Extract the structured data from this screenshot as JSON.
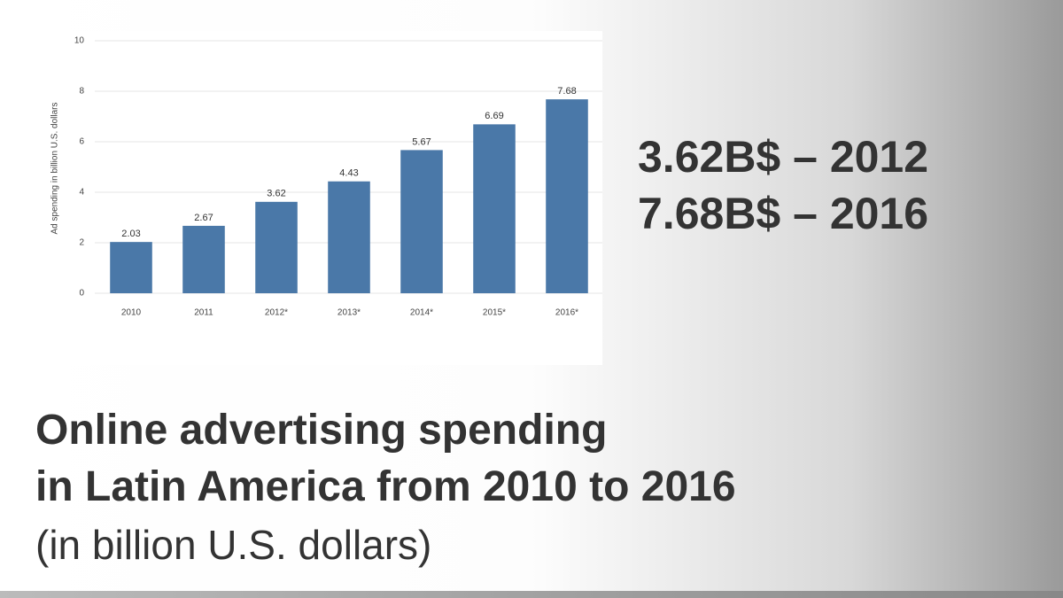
{
  "chart_data": {
    "type": "bar",
    "y_label": "Ad spending in billion U.S. dollars",
    "categories": [
      "2010",
      "2011",
      "2012*",
      "2013*",
      "2014*",
      "2015*",
      "2016*"
    ],
    "values": [
      2.03,
      2.67,
      3.62,
      4.43,
      5.67,
      6.69,
      7.68
    ],
    "color": "#4a78a8",
    "ylim": [
      0,
      10
    ],
    "yticks": [
      0,
      2,
      4,
      6,
      8,
      10
    ],
    "grid": true
  },
  "slide": {
    "highlights": [
      "3.62B$ – 2012",
      "7.68B$ – 2016"
    ],
    "title": [
      "Online advertising spending",
      "in Latin America from 2010 to 2016"
    ],
    "subtitle": "(in billion U.S. dollars)"
  }
}
